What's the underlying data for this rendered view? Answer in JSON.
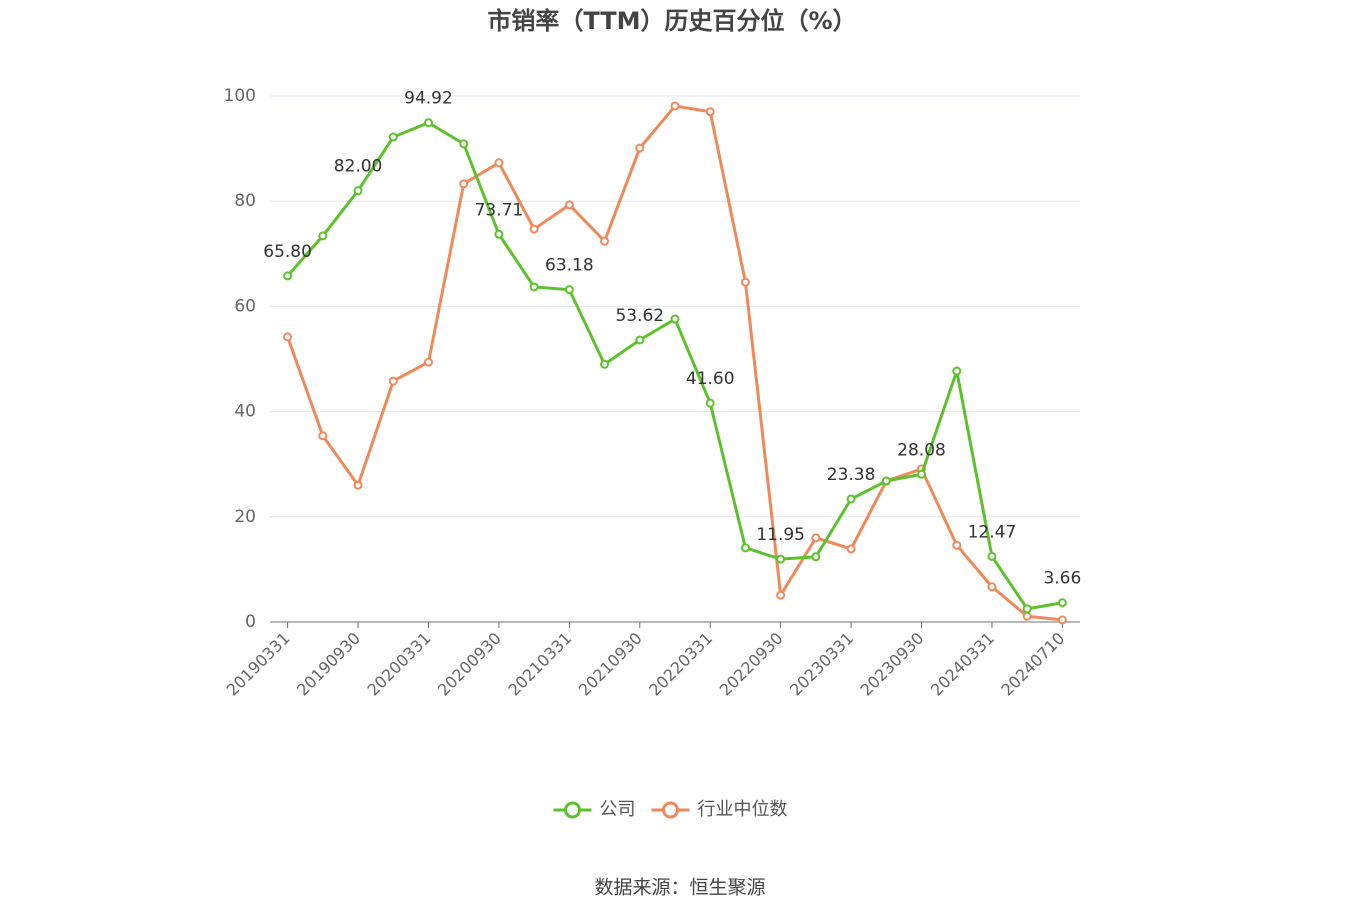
{
  "chart_data": {
    "type": "line",
    "title": "市销率（TTM）历史百分位（%）",
    "source": "数据来源：恒生聚源",
    "categories": [
      "20190331",
      null,
      "20190930",
      null,
      "20200331",
      null,
      "20200930",
      null,
      "20210331",
      null,
      "20210930",
      null,
      "20220331",
      null,
      "20220930",
      null,
      "20230331",
      null,
      "20230930",
      null,
      "20240331",
      null,
      "20240710"
    ],
    "series": [
      {
        "name": "公司",
        "color": "#5cc22b",
        "values": [
          65.8,
          73.4,
          82.0,
          92.2,
          94.92,
          90.9,
          73.71,
          63.7,
          63.18,
          49.0,
          53.62,
          57.6,
          41.6,
          14.1,
          11.95,
          12.4,
          23.38,
          26.8,
          28.08,
          47.7,
          12.47,
          2.5,
          3.66
        ],
        "value_labels": [
          "65.80",
          null,
          "82.00",
          null,
          "94.92",
          null,
          "73.71",
          null,
          "63.18",
          null,
          "53.62",
          null,
          "41.60",
          null,
          "11.95",
          null,
          "23.38",
          null,
          "28.08",
          null,
          "12.47",
          null,
          "3.66"
        ]
      },
      {
        "name": "行业中位数",
        "color": "#f0895a",
        "values": [
          54.2,
          35.4,
          26.0,
          45.8,
          49.4,
          83.3,
          87.3,
          74.7,
          79.3,
          72.4,
          90.1,
          98.1,
          97.0,
          64.6,
          5.1,
          16.0,
          13.9,
          26.8,
          29.1,
          14.6,
          6.7,
          1.1,
          0.4
        ]
      }
    ],
    "ylim": [
      0,
      100
    ],
    "yticks": [
      0,
      20,
      40,
      60,
      80,
      100
    ],
    "grid": true,
    "legend": "bottom"
  }
}
